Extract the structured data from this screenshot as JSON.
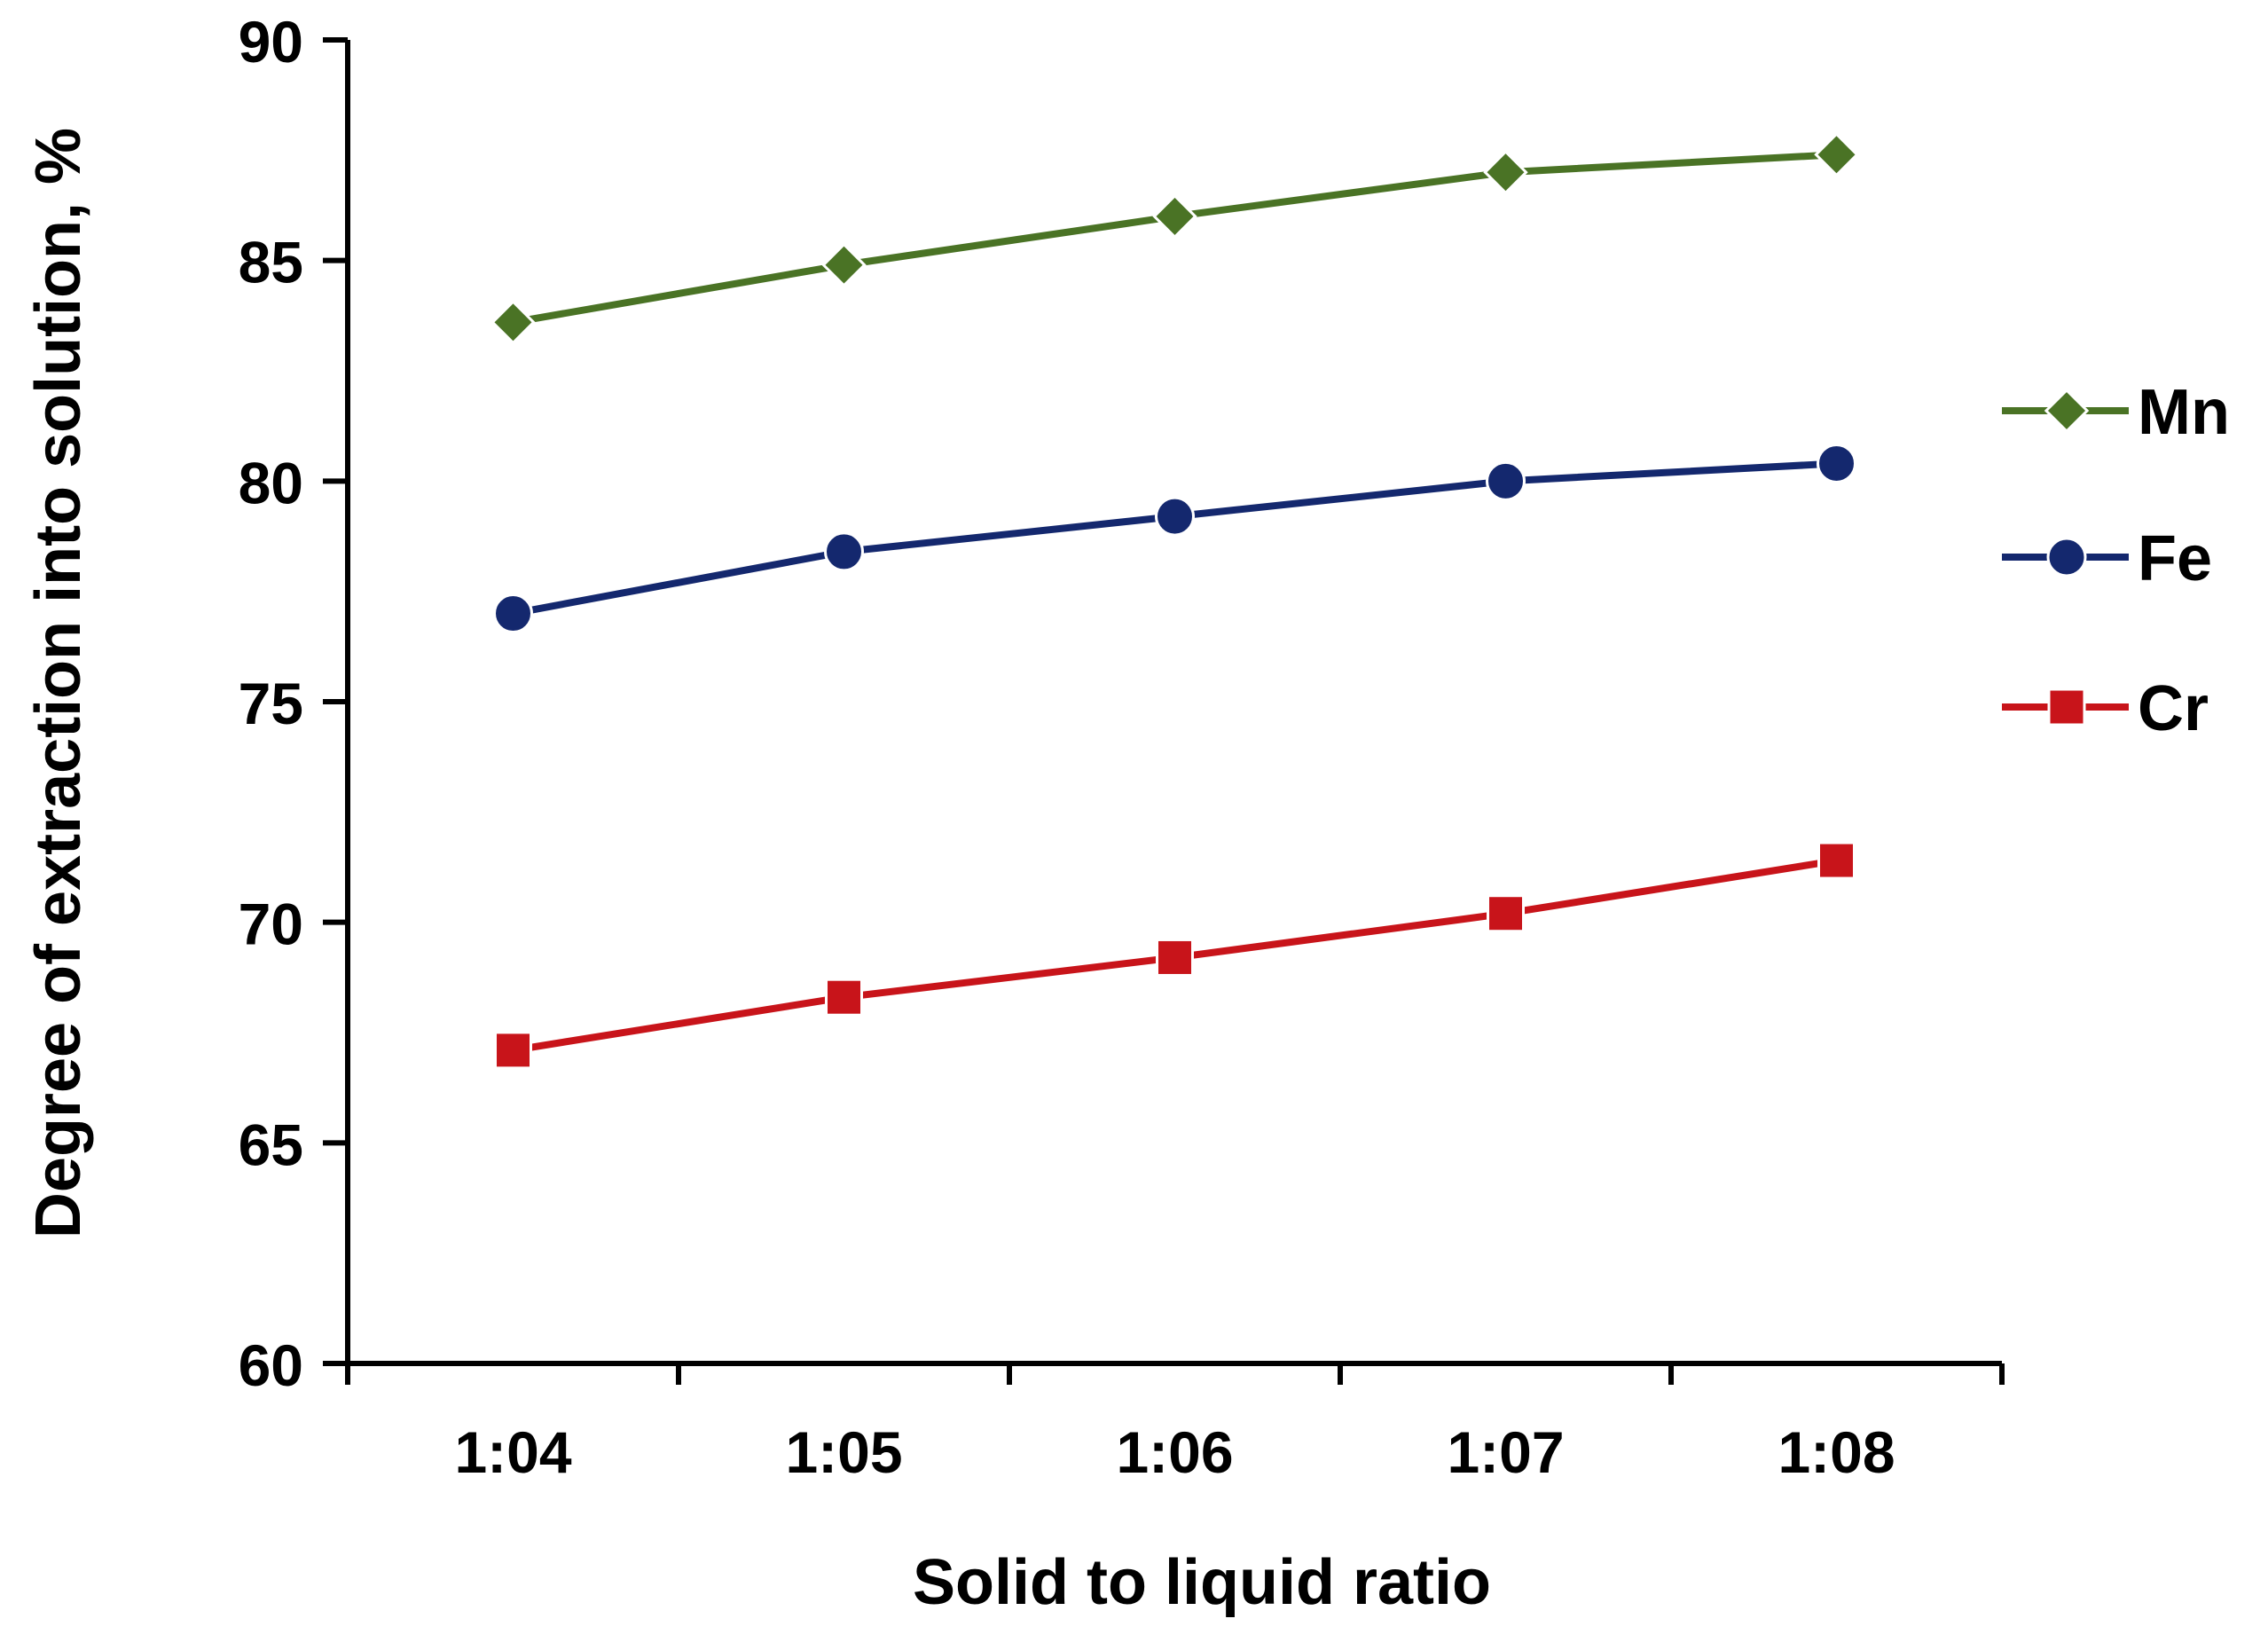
{
  "chart_data": {
    "type": "line",
    "title": "",
    "xlabel": "Solid to liquid ratio",
    "ylabel": "Degree of extraction into solution, %",
    "categories": [
      "1:04",
      "1:05",
      "1:06",
      "1:07",
      "1:08"
    ],
    "ylim": [
      60,
      90
    ],
    "yticks": [
      60,
      65,
      70,
      75,
      80,
      85,
      90
    ],
    "grid": false,
    "legend_position": "right",
    "series": [
      {
        "name": "Mn",
        "color": "#4a7325",
        "marker": "diamond",
        "values": [
          83.6,
          84.9,
          86.0,
          87.0,
          87.4
        ]
      },
      {
        "name": "Fe",
        "color": "#14286e",
        "marker": "circle",
        "values": [
          77.0,
          78.4,
          79.2,
          80.0,
          80.4
        ]
      },
      {
        "name": "Cr",
        "color": "#c8141a",
        "marker": "square",
        "values": [
          67.1,
          68.3,
          69.2,
          70.2,
          71.4
        ]
      }
    ]
  }
}
